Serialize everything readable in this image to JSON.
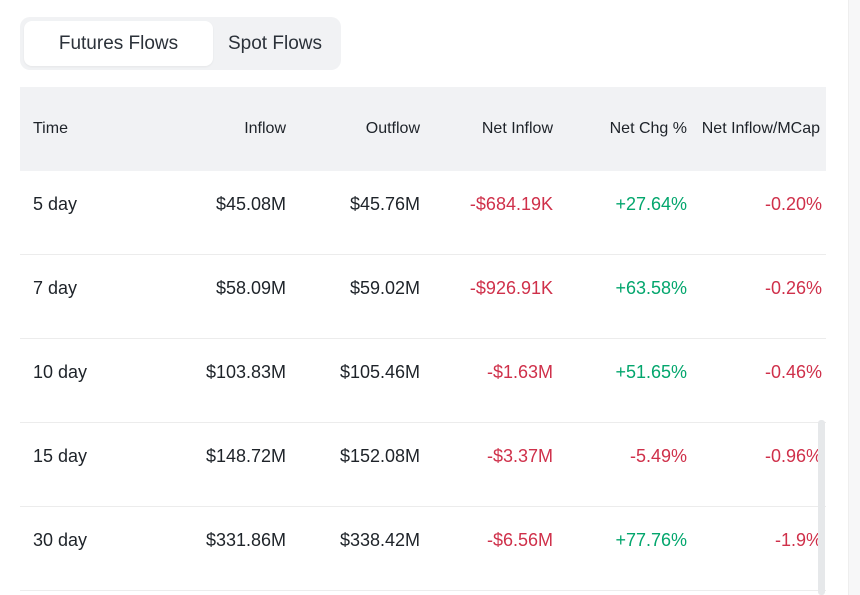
{
  "tabs": [
    {
      "label": "Futures Flows",
      "active": true
    },
    {
      "label": "Spot Flows",
      "active": false
    }
  ],
  "table": {
    "headers": {
      "time": "Time",
      "inflow": "Inflow",
      "outflow": "Outflow",
      "net_inflow": "Net Inflow",
      "net_chg": "Net Chg %",
      "net_inflow_mcap": "Net Inflow/MCap"
    },
    "rows": [
      {
        "time": "5 day",
        "inflow": "$45.08M",
        "outflow": "$45.76M",
        "net_inflow": "-$684.19K",
        "net_chg": "+27.64%",
        "net_inflow_mcap": "-0.20%"
      },
      {
        "time": "7 day",
        "inflow": "$58.09M",
        "outflow": "$59.02M",
        "net_inflow": "-$926.91K",
        "net_chg": "+63.58%",
        "net_inflow_mcap": "-0.26%"
      },
      {
        "time": "10 day",
        "inflow": "$103.83M",
        "outflow": "$105.46M",
        "net_inflow": "-$1.63M",
        "net_chg": "+51.65%",
        "net_inflow_mcap": "-0.46%"
      },
      {
        "time": "15 day",
        "inflow": "$148.72M",
        "outflow": "$152.08M",
        "net_inflow": "-$3.37M",
        "net_chg": "-5.49%",
        "net_inflow_mcap": "-0.96%"
      },
      {
        "time": "30 day",
        "inflow": "$331.86M",
        "outflow": "$338.42M",
        "net_inflow": "-$6.56M",
        "net_chg": "+77.76%",
        "net_inflow_mcap": "-1.9%"
      }
    ]
  },
  "colors": {
    "negative": "#cf304a",
    "positive": "#03a66d",
    "header_bg": "#f1f2f4"
  }
}
